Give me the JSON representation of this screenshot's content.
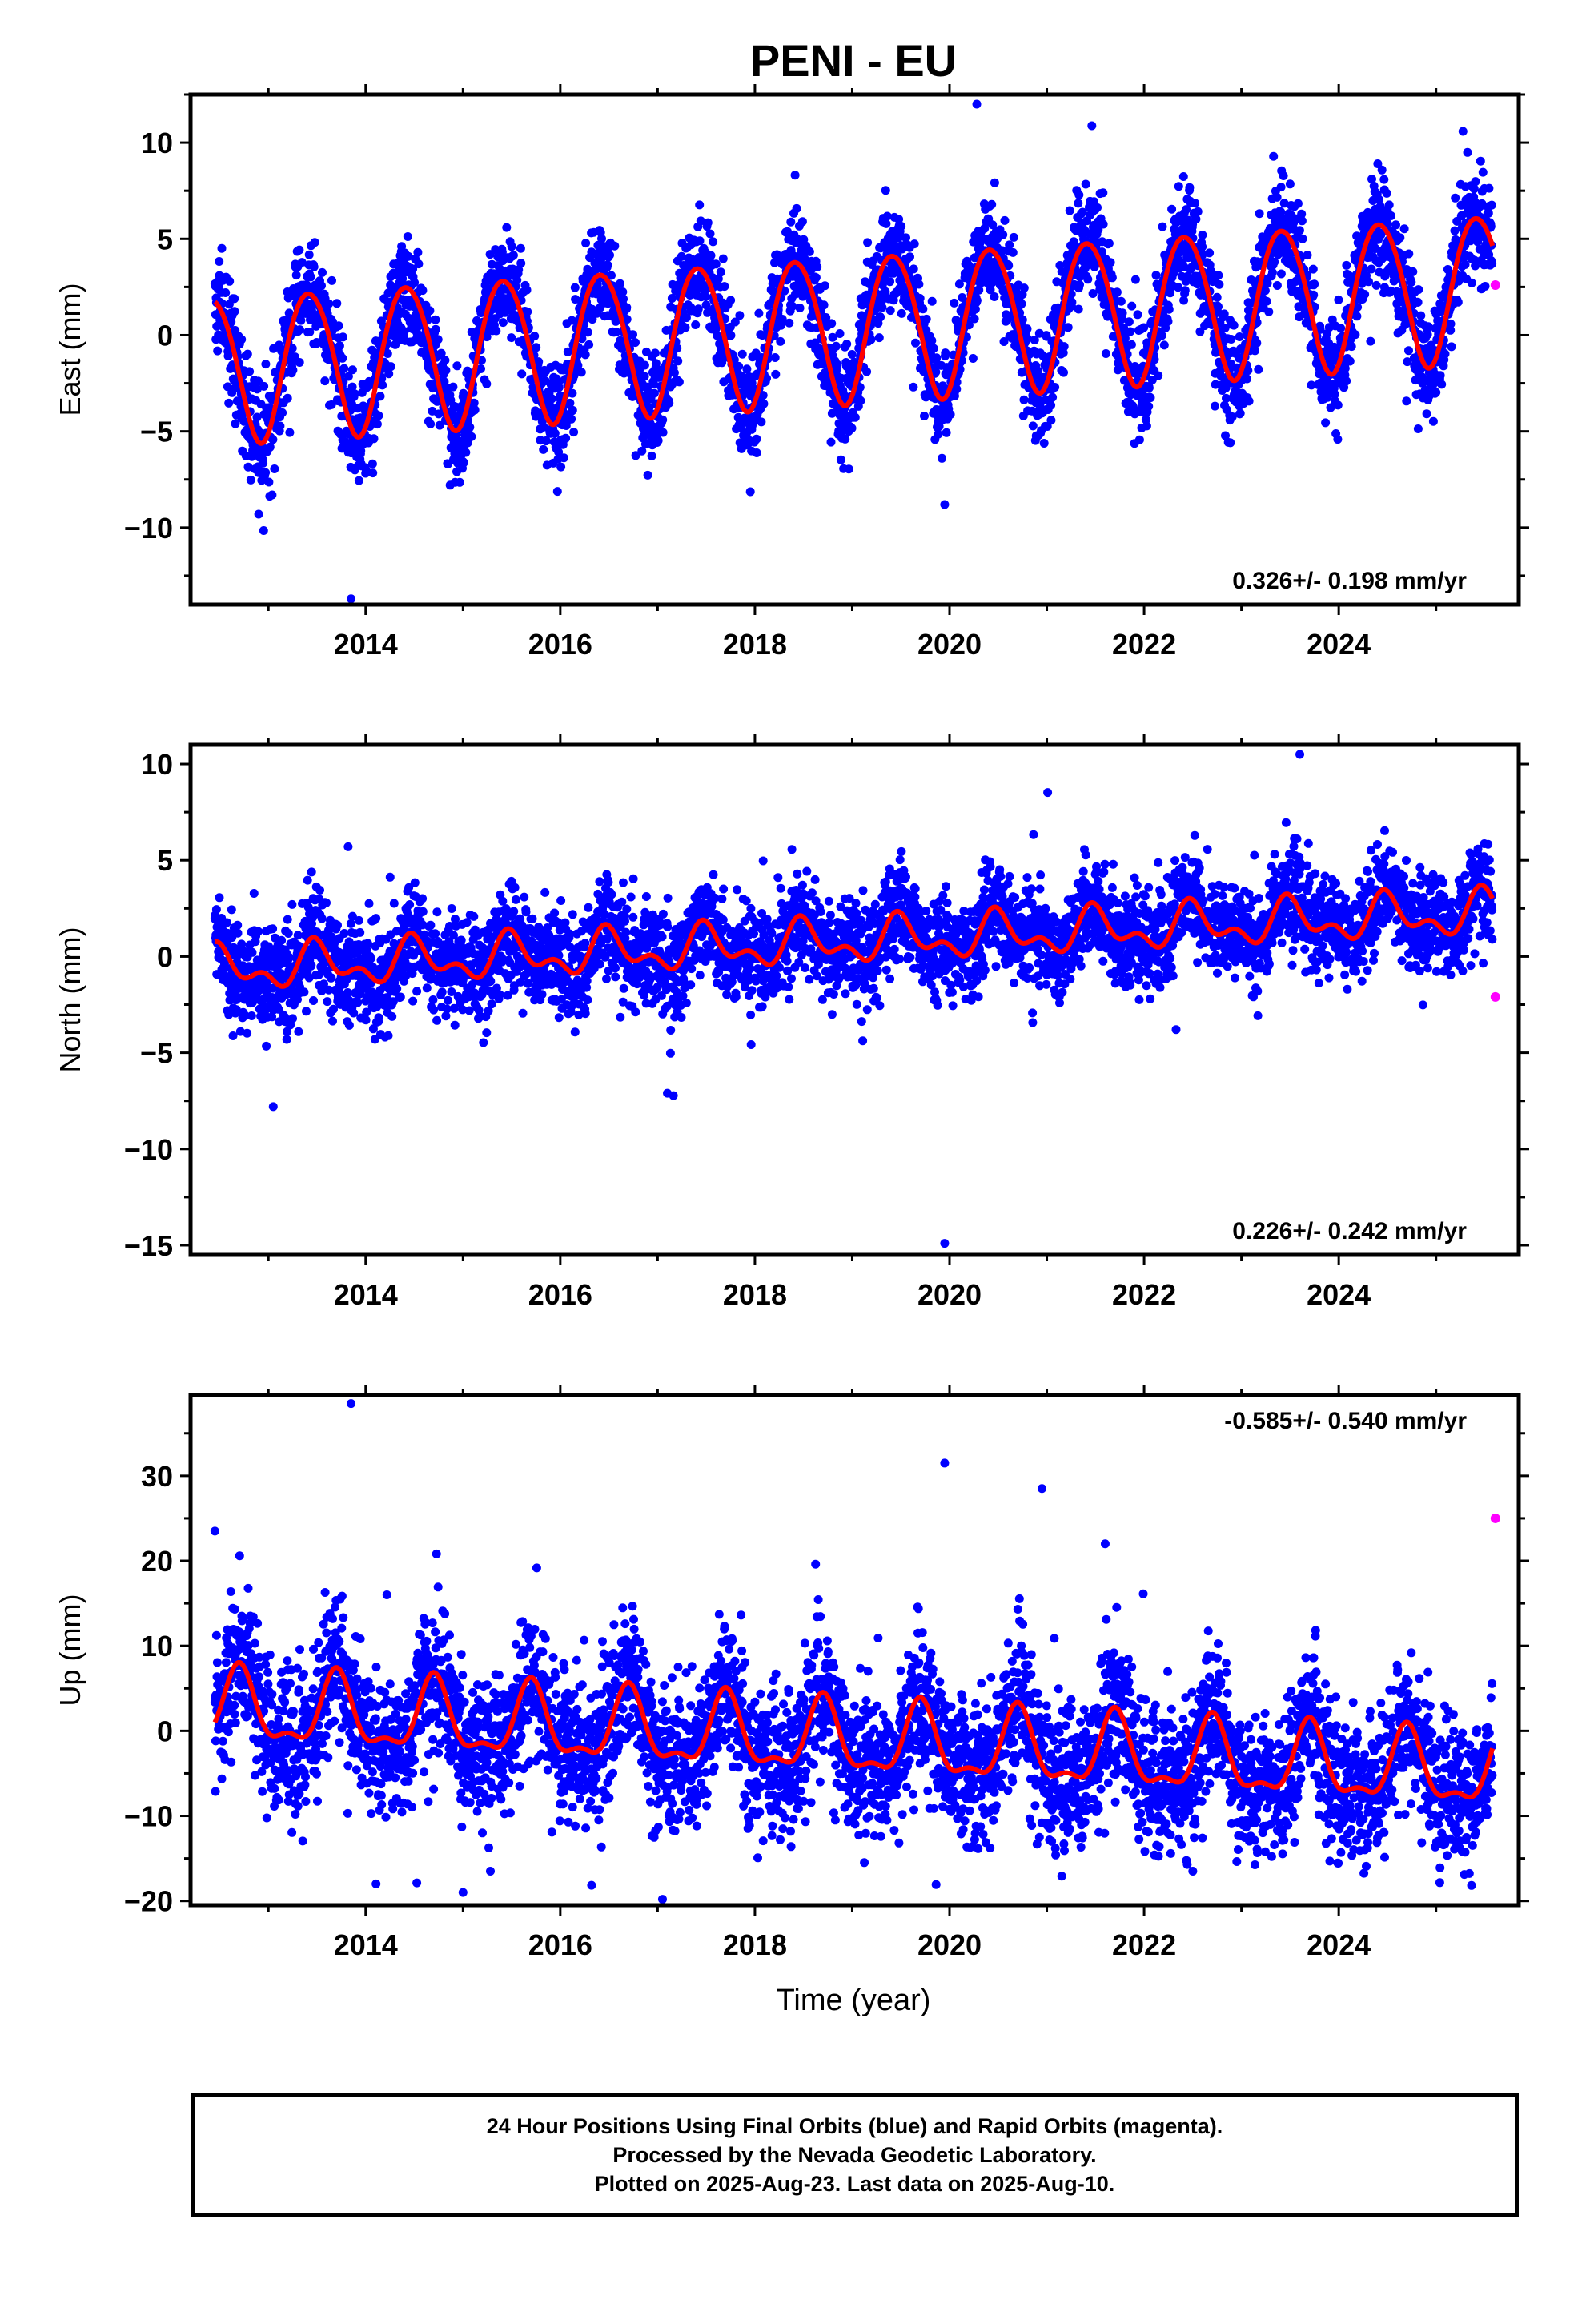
{
  "figure": {
    "title": "PENI - EU",
    "xlabel": "Time (year)",
    "footer": [
      "24 Hour Positions Using Final Orbits (blue) and Rapid Orbits (magenta).",
      "Processed by the Nevada Geodetic Laboratory.",
      "Plotted on 2025-Aug-23. Last data on 2025-Aug-10."
    ],
    "colors": {
      "final_orbits": "#0000ff",
      "rapid_orbits": "#ff00ff",
      "model_fit": "#ff0000",
      "frame": "#000000"
    }
  },
  "chart_data": [
    {
      "type": "scatter",
      "panel": "east",
      "ylabel": "East (mm)",
      "rate_label": "0.326+/- 0.198 mm/yr",
      "rate_position": "bottom-right",
      "xlim": [
        2012.2,
        2025.85
      ],
      "ylim": [
        -14,
        12.5
      ],
      "xticks": [
        2014,
        2016,
        2018,
        2020,
        2022,
        2024
      ],
      "xtick_labels": [
        "2014",
        "2016",
        "2018",
        "2020",
        "2022",
        "2024"
      ],
      "yticks": [
        -10,
        -5,
        0,
        5,
        10
      ],
      "ytick_labels": [
        "−10",
        "−5",
        "0",
        "5",
        "10"
      ],
      "data_start": 2012.45,
      "data_end": 2025.58,
      "model": {
        "rate": 0.326,
        "offset": -1.7,
        "annual_amplitude": 3.8,
        "annual_phase_year": 2013.42,
        "semiannual_amplitude": 0.3,
        "semiannual_phase_year": 2013.2
      },
      "scatter_sd": 1.35,
      "outliers": [
        {
          "x": 2013.85,
          "y": -13.7
        },
        {
          "x": 2019.95,
          "y": -8.8
        },
        {
          "x": 2020.28,
          "y": 12.0
        },
        {
          "x": 2012.9,
          "y": -9.3
        }
      ],
      "rapid_points": [
        {
          "x": 2025.61,
          "y": 2.6
        }
      ]
    },
    {
      "type": "scatter",
      "panel": "north",
      "ylabel": "North (mm)",
      "rate_label": "0.226+/- 0.242 mm/yr",
      "rate_position": "bottom-right",
      "xlim": [
        2012.2,
        2025.85
      ],
      "ylim": [
        -15.5,
        11
      ],
      "xticks": [
        2014,
        2016,
        2018,
        2020,
        2022,
        2024
      ],
      "xtick_labels": [
        "2014",
        "2016",
        "2018",
        "2020",
        "2022",
        "2024"
      ],
      "yticks": [
        -15,
        -10,
        -5,
        0,
        5,
        10
      ],
      "ytick_labels": [
        "−15",
        "−10",
        "−5",
        "0",
        "5",
        "10"
      ],
      "data_start": 2012.45,
      "data_end": 2025.58,
      "model": {
        "rate": 0.226,
        "offset": -0.7,
        "annual_amplitude": 0.9,
        "annual_phase_year": 2013.5,
        "semiannual_amplitude": 0.6,
        "semiannual_phase_year": 2013.45
      },
      "scatter_sd": 1.25,
      "outliers": [
        {
          "x": 2019.95,
          "y": -14.9
        },
        {
          "x": 2023.6,
          "y": 10.5
        },
        {
          "x": 2013.82,
          "y": 5.7
        },
        {
          "x": 2013.05,
          "y": -7.8
        },
        {
          "x": 2017.1,
          "y": -7.1
        }
      ],
      "rapid_points": [
        {
          "x": 2025.61,
          "y": -2.1
        }
      ]
    },
    {
      "type": "scatter",
      "panel": "up",
      "ylabel": "Up (mm)",
      "rate_label": "-0.585+/- 0.540 mm/yr",
      "rate_position": "top-right",
      "xlim": [
        2012.2,
        2025.85
      ],
      "ylim": [
        -20.5,
        39.5
      ],
      "xticks": [
        2014,
        2016,
        2018,
        2020,
        2022,
        2024
      ],
      "xtick_labels": [
        "2014",
        "2016",
        "2018",
        "2020",
        "2022",
        "2024"
      ],
      "yticks": [
        -20,
        -10,
        0,
        10,
        20,
        30
      ],
      "ytick_labels": [
        "−20",
        "−10",
        "0",
        "10",
        "20",
        "30"
      ],
      "data_start": 2012.45,
      "data_end": 2025.58,
      "model": {
        "rate": -0.585,
        "offset": 2.6,
        "annual_amplitude": 4.0,
        "annual_phase_year": 2012.7,
        "semiannual_amplitude": 1.6,
        "semiannual_phase_year": 2012.7
      },
      "scatter_sd": 4.2,
      "outliers": [
        {
          "x": 2013.85,
          "y": 38.5
        },
        {
          "x": 2019.95,
          "y": 31.5
        },
        {
          "x": 2020.95,
          "y": 28.5
        },
        {
          "x": 2012.45,
          "y": 23.5
        },
        {
          "x": 2021.6,
          "y": 22.0
        },
        {
          "x": 2015.0,
          "y": -19.0
        },
        {
          "x": 2017.05,
          "y": -19.8
        },
        {
          "x": 2022.5,
          "y": -16.5
        }
      ],
      "rapid_points": [
        {
          "x": 2025.61,
          "y": 25.0
        }
      ]
    }
  ]
}
